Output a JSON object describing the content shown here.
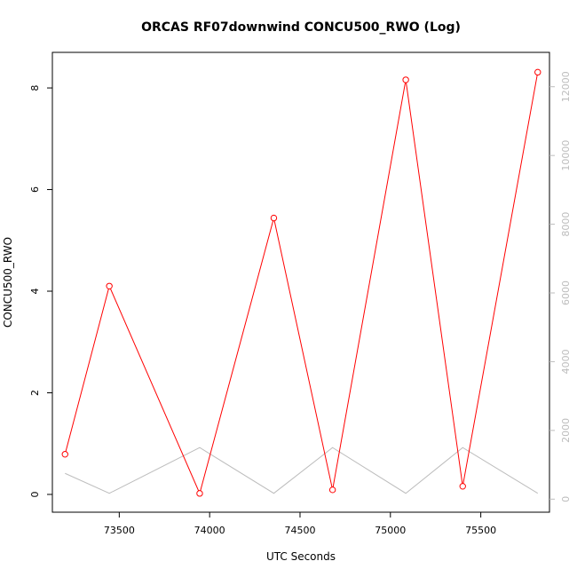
{
  "chart_data": {
    "type": "line",
    "title": "ORCAS RF07downwind CONCU500_RWO (Log)",
    "xlabel": "UTC Seconds",
    "ylabel": "CONCU500_RWO",
    "y2label": "",
    "xlim": [
      73130,
      75880
    ],
    "ylim": [
      -0.35,
      8.7
    ],
    "y2lim": [
      -380,
      13000
    ],
    "x_ticks": [
      73500,
      74000,
      74500,
      75000,
      75500
    ],
    "y_ticks": [
      0,
      2,
      4,
      6,
      8
    ],
    "y2_ticks": [
      0,
      2000,
      4000,
      6000,
      8000,
      10000,
      12000
    ],
    "grid": false,
    "legend": "none",
    "series": [
      {
        "axis": "left",
        "color": "#ff0000",
        "markers": "open-circle",
        "x": [
          73200,
          73445,
          73945,
          74355,
          74680,
          75085,
          75400,
          75815
        ],
        "y": [
          0.79,
          4.1,
          0.02,
          5.44,
          0.09,
          8.16,
          0.16,
          8.31
        ]
      },
      {
        "axis": "right",
        "color": "#bdbdbd",
        "markers": "none",
        "x": [
          73200,
          73445,
          73945,
          74355,
          74680,
          75085,
          75400,
          75815
        ],
        "y": [
          750,
          170,
          1500,
          170,
          1500,
          170,
          1500,
          170
        ]
      }
    ]
  }
}
